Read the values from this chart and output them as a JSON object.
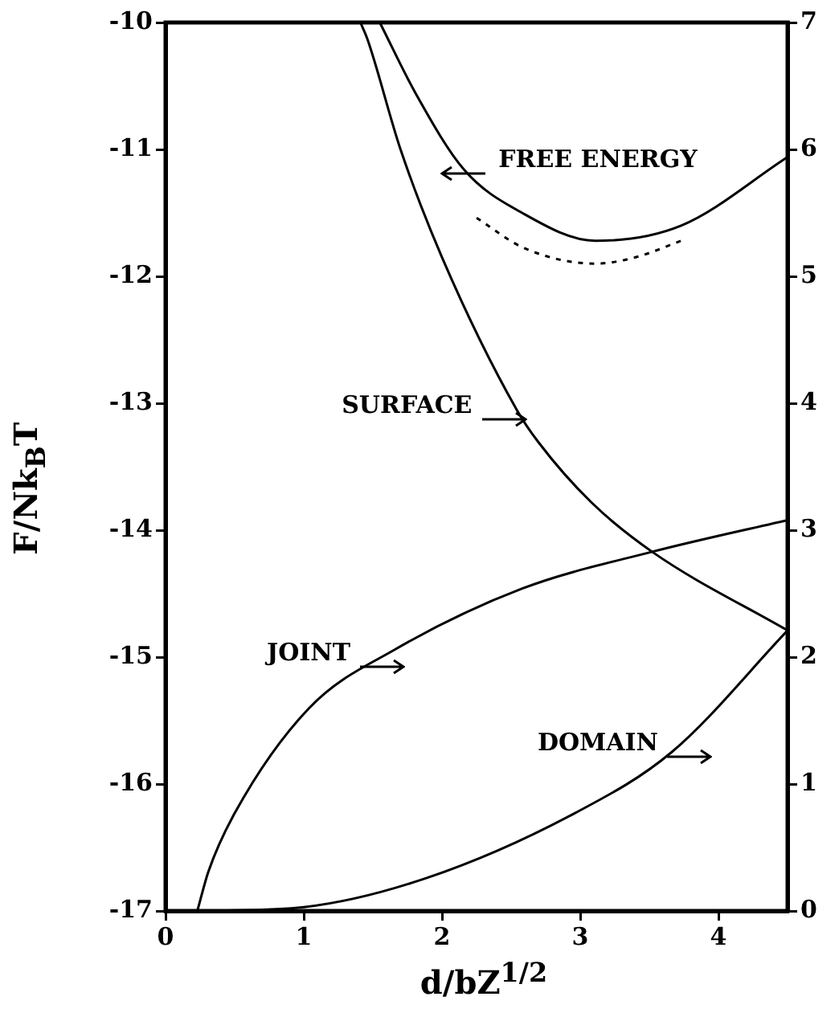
{
  "chart_data": {
    "type": "line",
    "xlabel": "d/bZ$^{1/2}$",
    "ylabel": "F/Nk$_{B}$T",
    "xlim": [
      0,
      4.5
    ],
    "xticks": [
      0,
      1,
      2,
      3,
      4
    ],
    "ylim": [
      -17,
      -10
    ],
    "yticks": [
      -17,
      -16,
      -15,
      -14,
      -13,
      -12,
      -11,
      -10
    ],
    "y2lim": [
      0,
      7
    ],
    "y2ticks": [
      0,
      1,
      2,
      3,
      4,
      5,
      6,
      7
    ],
    "grid": false,
    "legend": false,
    "marker": "none",
    "series": [
      {
        "color": "#000000",
        "axis": "y",
        "line_style": "solid",
        "x": [
          1.55,
          1.81,
          2.16,
          2.58,
          3.11,
          3.73,
          4.5
        ],
        "values": [
          -10,
          -10.56,
          -11.16,
          -11.5,
          -11.72,
          -11.6,
          -11.06
        ]
      },
      {
        "color": "#000000",
        "axis": "y2",
        "line_style": "solid",
        "x": [
          1.41,
          1.46,
          1.7,
          2.0,
          2.54,
          2.7,
          3.08,
          3.52,
          4.5
        ],
        "values": [
          7,
          6.87,
          6.0,
          5.15,
          3.95,
          3.69,
          3.22,
          2.83,
          2.21
        ]
      },
      {
        "color": "#000000",
        "axis": "y2",
        "line_style": "solid",
        "x": [
          0.23,
          0.31,
          0.5,
          1.04,
          1.66,
          2.58,
          3.52,
          4.5
        ],
        "values": [
          0,
          0.31,
          0.77,
          1.6,
          2.06,
          2.54,
          2.83,
          3.08
        ]
      },
      {
        "color": "#000000",
        "axis": "y2",
        "line_style": "solid",
        "x": [
          0.3,
          1.0,
          1.89,
          2.96,
          3.66,
          4.5
        ],
        "values": [
          0,
          0.03,
          0.26,
          0.77,
          1.25,
          2.21
        ]
      },
      {
        "color": "#000000",
        "axis": "y",
        "line_style": "dotted",
        "x": [
          2.25,
          2.6,
          3.11,
          3.4,
          3.73
        ],
        "values": [
          -11.54,
          -11.78,
          -11.9,
          -11.85,
          -11.72
        ]
      }
    ],
    "annotations": [
      "FREE ENERGY",
      "SURFACE",
      "JOINT",
      "DOMAIN"
    ]
  }
}
